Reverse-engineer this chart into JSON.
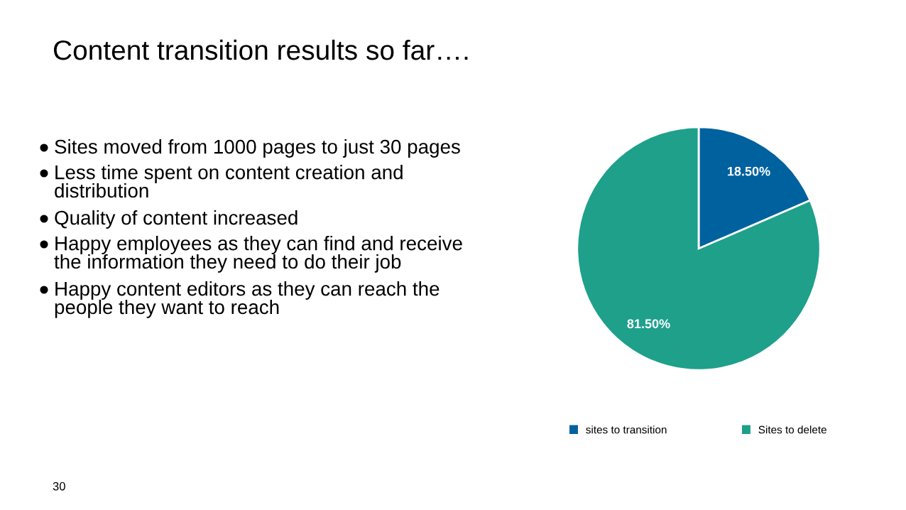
{
  "chart_data": {
    "type": "pie",
    "title": "Content transition results so far….",
    "categories": [
      "sites to transition",
      "Sites to delete"
    ],
    "values": [
      18.5,
      81.5
    ],
    "colors": [
      "#00619f",
      "#1ea08b"
    ],
    "value_labels": [
      "18.50%",
      "81.50%"
    ],
    "legend": "bottom",
    "annotations": [
      "Sites moved from 1000 pages to just 30 pages",
      "Less time spent on content creation and distribution",
      "Quality of content increased",
      "Happy employees as they can find and receive the information they need to do their job",
      "Happy content editors as they can reach the people they want to reach",
      "30"
    ]
  }
}
